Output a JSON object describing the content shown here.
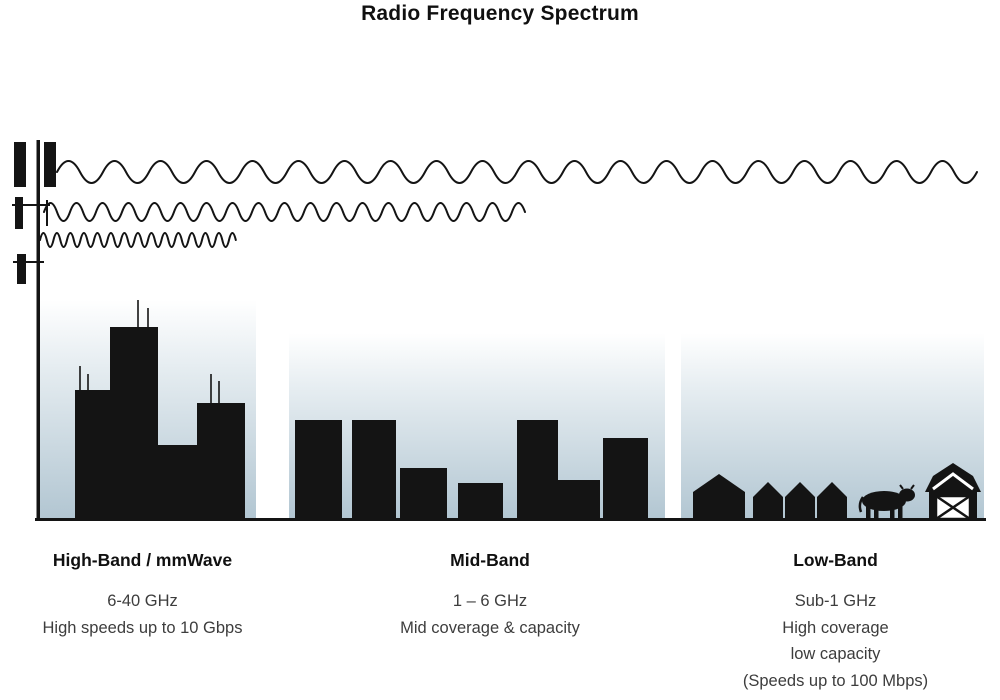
{
  "title": "Radio Frequency Spectrum",
  "sections": [
    {
      "name": "High-Band / mmWave",
      "lines": [
        "6-40 GHz",
        "High speeds up to 10 Gbps"
      ]
    },
    {
      "name": "Mid-Band",
      "lines": [
        "1 – 6 GHz",
        "Mid coverage & capacity"
      ]
    },
    {
      "name": "Low-Band",
      "lines": [
        "Sub-1 GHz",
        "High coverage",
        "low capacity",
        "(Speeds up to 100 Mbps)"
      ]
    }
  ],
  "colors": {
    "silhouette": "#141414",
    "sky_gradient_bottom": "#b2c6d2",
    "body_text": "#3d3d3d",
    "heading_text": "#101010"
  }
}
